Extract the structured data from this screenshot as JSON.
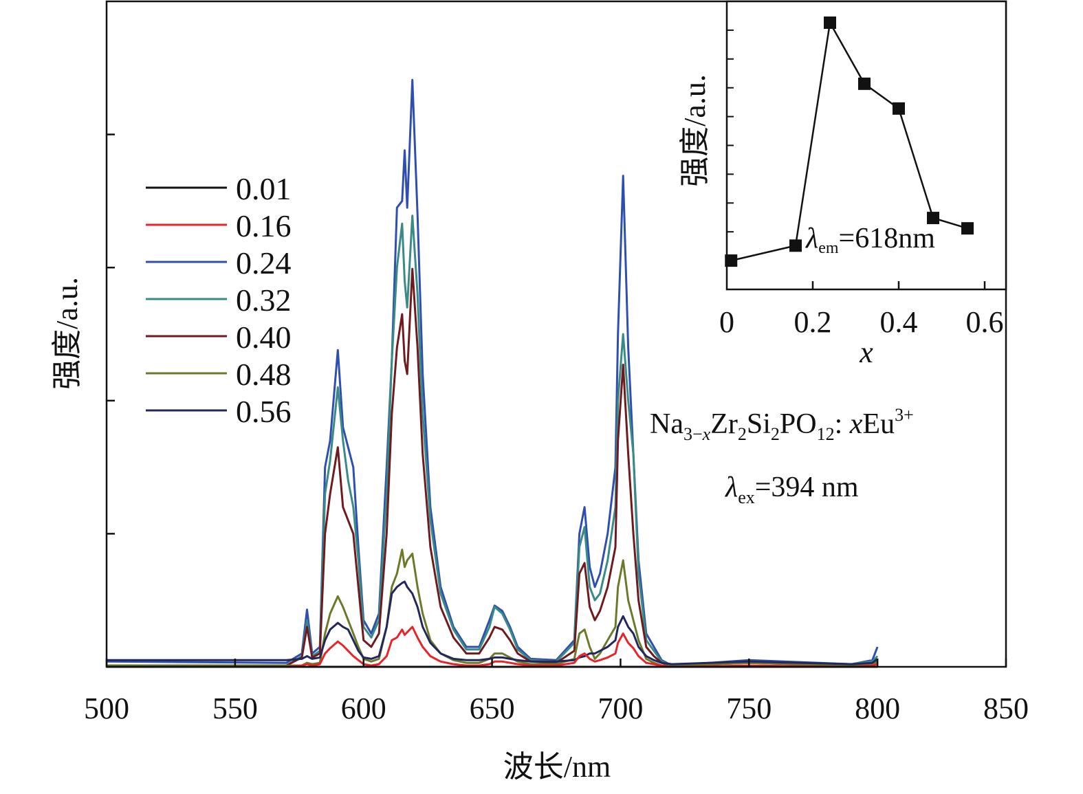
{
  "chart_data": [
    {
      "type": "line",
      "xlabel": "波长/nm",
      "ylabel": "强度/a.u.",
      "xlim": [
        500,
        850
      ],
      "ylim": [
        0,
        5
      ],
      "xticks": [
        "500",
        "550",
        "600",
        "650",
        "700",
        "750",
        "800",
        "850"
      ],
      "yticks_labeled": false,
      "grid": false,
      "legend_placement": "upper-left",
      "x": [
        500,
        570,
        576,
        578,
        580,
        583,
        585,
        587,
        590,
        592,
        594,
        596,
        598,
        600,
        603,
        606,
        609,
        611,
        613,
        615,
        616,
        617,
        619,
        621,
        623,
        626,
        630,
        635,
        640,
        645,
        649,
        651,
        654,
        657,
        660,
        665,
        675,
        682,
        684,
        686,
        688,
        690,
        692,
        695,
        698,
        699,
        701,
        703,
        705,
        707,
        710,
        713,
        716,
        720,
        750,
        790,
        798,
        800
      ],
      "series": [
        {
          "name": "0.01",
          "color": "#111111",
          "values": [
            0,
            0,
            0,
            0,
            0,
            0,
            0,
            0,
            0,
            0,
            0,
            0,
            0,
            0,
            0,
            0,
            0,
            0,
            0,
            0,
            0,
            0,
            0,
            0,
            0,
            0,
            0,
            0,
            0,
            0,
            0,
            0,
            0,
            0,
            0,
            0,
            0,
            0,
            0,
            0,
            0,
            0,
            0,
            0,
            0,
            0,
            0,
            0,
            0,
            0,
            0,
            0,
            0,
            0,
            0,
            0,
            0,
            0
          ]
        },
        {
          "name": "0.16",
          "color": "#e8242b",
          "values": [
            0.0,
            0.0,
            0.01,
            0.02,
            0.01,
            0.02,
            0.1,
            0.14,
            0.19,
            0.16,
            0.12,
            0.08,
            0.05,
            0.02,
            0.01,
            0.02,
            0.08,
            0.2,
            0.22,
            0.28,
            0.24,
            0.26,
            0.3,
            0.22,
            0.15,
            0.08,
            0.04,
            0.02,
            0.01,
            0.01,
            0.02,
            0.04,
            0.04,
            0.03,
            0.02,
            0.01,
            0.01,
            0.03,
            0.08,
            0.1,
            0.06,
            0.04,
            0.05,
            0.07,
            0.1,
            0.18,
            0.25,
            0.18,
            0.14,
            0.08,
            0.03,
            0.02,
            0.01,
            0.0,
            0.01,
            0.0,
            0.01,
            0.02
          ]
        },
        {
          "name": "0.24",
          "color": "#2f4fb0",
          "values": [
            0.04,
            0.03,
            0.1,
            0.43,
            0.1,
            0.15,
            1.5,
            1.7,
            2.38,
            1.8,
            1.65,
            1.5,
            0.9,
            0.35,
            0.25,
            0.4,
            1.5,
            2.3,
            3.45,
            3.5,
            3.88,
            3.45,
            4.41,
            3.4,
            2.2,
            1.2,
            0.6,
            0.3,
            0.15,
            0.15,
            0.35,
            0.46,
            0.42,
            0.3,
            0.15,
            0.06,
            0.05,
            0.2,
            1.0,
            1.2,
            0.75,
            0.6,
            0.7,
            1.0,
            1.5,
            2.5,
            3.69,
            2.4,
            1.6,
            0.8,
            0.25,
            0.15,
            0.05,
            0.01,
            0.05,
            0.02,
            0.05,
            0.15
          ]
        },
        {
          "name": "0.32",
          "color": "#3a8a86",
          "values": [
            0.01,
            0.01,
            0.08,
            0.35,
            0.08,
            0.12,
            1.3,
            1.55,
            2.1,
            1.7,
            1.4,
            1.2,
            0.8,
            0.3,
            0.22,
            0.35,
            1.3,
            2.3,
            3.0,
            3.33,
            2.9,
            2.7,
            3.39,
            2.8,
            1.9,
            1.1,
            0.55,
            0.28,
            0.13,
            0.13,
            0.3,
            0.45,
            0.4,
            0.28,
            0.13,
            0.05,
            0.04,
            0.18,
            0.9,
            1.05,
            0.6,
            0.5,
            0.55,
            0.8,
            1.2,
            2.0,
            2.5,
            2.0,
            1.6,
            0.7,
            0.2,
            0.12,
            0.04,
            0.01,
            0.04,
            0.02,
            0.04,
            0.08
          ]
        },
        {
          "name": "0.40",
          "color": "#6e1a1e",
          "values": [
            0.01,
            0.01,
            0.07,
            0.3,
            0.07,
            0.1,
            1.0,
            1.3,
            1.65,
            1.2,
            1.1,
            1.0,
            0.6,
            0.2,
            0.15,
            0.25,
            1.0,
            1.9,
            2.4,
            2.65,
            2.3,
            2.2,
            2.99,
            2.4,
            1.6,
            0.9,
            0.45,
            0.22,
            0.1,
            0.1,
            0.22,
            0.3,
            0.28,
            0.2,
            0.1,
            0.04,
            0.03,
            0.12,
            0.7,
            0.78,
            0.45,
            0.35,
            0.42,
            0.6,
            0.9,
            1.7,
            2.27,
            1.6,
            1.0,
            0.5,
            0.15,
            0.08,
            0.03,
            0.01,
            0.03,
            0.01,
            0.03,
            0.05
          ]
        },
        {
          "name": "0.48",
          "color": "#6b7a2a",
          "values": [
            0.01,
            0.01,
            0.01,
            0.03,
            0.02,
            0.03,
            0.25,
            0.4,
            0.53,
            0.45,
            0.35,
            0.25,
            0.15,
            0.06,
            0.04,
            0.06,
            0.3,
            0.6,
            0.7,
            0.88,
            0.75,
            0.8,
            0.85,
            0.6,
            0.4,
            0.2,
            0.1,
            0.05,
            0.03,
            0.03,
            0.06,
            0.1,
            0.1,
            0.07,
            0.04,
            0.02,
            0.02,
            0.06,
            0.25,
            0.28,
            0.15,
            0.06,
            0.1,
            0.2,
            0.3,
            0.6,
            0.8,
            0.5,
            0.35,
            0.2,
            0.06,
            0.03,
            0.01,
            0.01,
            0.03,
            0.01,
            0.02,
            0.04
          ]
        },
        {
          "name": "0.56",
          "color": "#22285e",
          "values": [
            0.05,
            0.05,
            0.06,
            0.08,
            0.06,
            0.07,
            0.2,
            0.28,
            0.33,
            0.3,
            0.28,
            0.2,
            0.12,
            0.07,
            0.06,
            0.08,
            0.3,
            0.55,
            0.6,
            0.63,
            0.64,
            0.6,
            0.55,
            0.45,
            0.3,
            0.18,
            0.1,
            0.06,
            0.05,
            0.05,
            0.06,
            0.07,
            0.07,
            0.06,
            0.05,
            0.04,
            0.04,
            0.05,
            0.07,
            0.08,
            0.1,
            0.1,
            0.12,
            0.15,
            0.2,
            0.3,
            0.38,
            0.3,
            0.25,
            0.15,
            0.08,
            0.05,
            0.03,
            0.02,
            0.04,
            0.02,
            0.03,
            0.06
          ]
        }
      ],
      "annotations": {
        "formula": {
          "base1": "Na",
          "sub1": "3−",
          "sub1_italic": "x",
          "base2": "Zr",
          "sub2": "2",
          "base3": "Si",
          "sub3": "2",
          "base4": "PO",
          "sub4": "12",
          "base5": ": ",
          "italic_x": "x",
          "base6": "Eu",
          "sup": "3+"
        },
        "excitation": {
          "symbol": "λ",
          "sub": "ex",
          "value": "=394 nm"
        }
      }
    },
    {
      "type": "line",
      "xlabel": "x",
      "ylabel": "强度/a.u.",
      "xlim": [
        0,
        0.65
      ],
      "ylim": [
        0,
        5
      ],
      "xticks": [
        "0",
        "0.2",
        "0.4",
        "0.6"
      ],
      "yticks_labeled": false,
      "marker": "square",
      "color": "#111111",
      "x": [
        0.01,
        0.16,
        0.24,
        0.32,
        0.4,
        0.48,
        0.56
      ],
      "values": [
        0.5,
        0.76,
        4.63,
        3.57,
        3.14,
        1.24,
        1.06
      ],
      "annotation": {
        "symbol": "λ",
        "sub": "em",
        "value": "=618nm"
      }
    }
  ]
}
